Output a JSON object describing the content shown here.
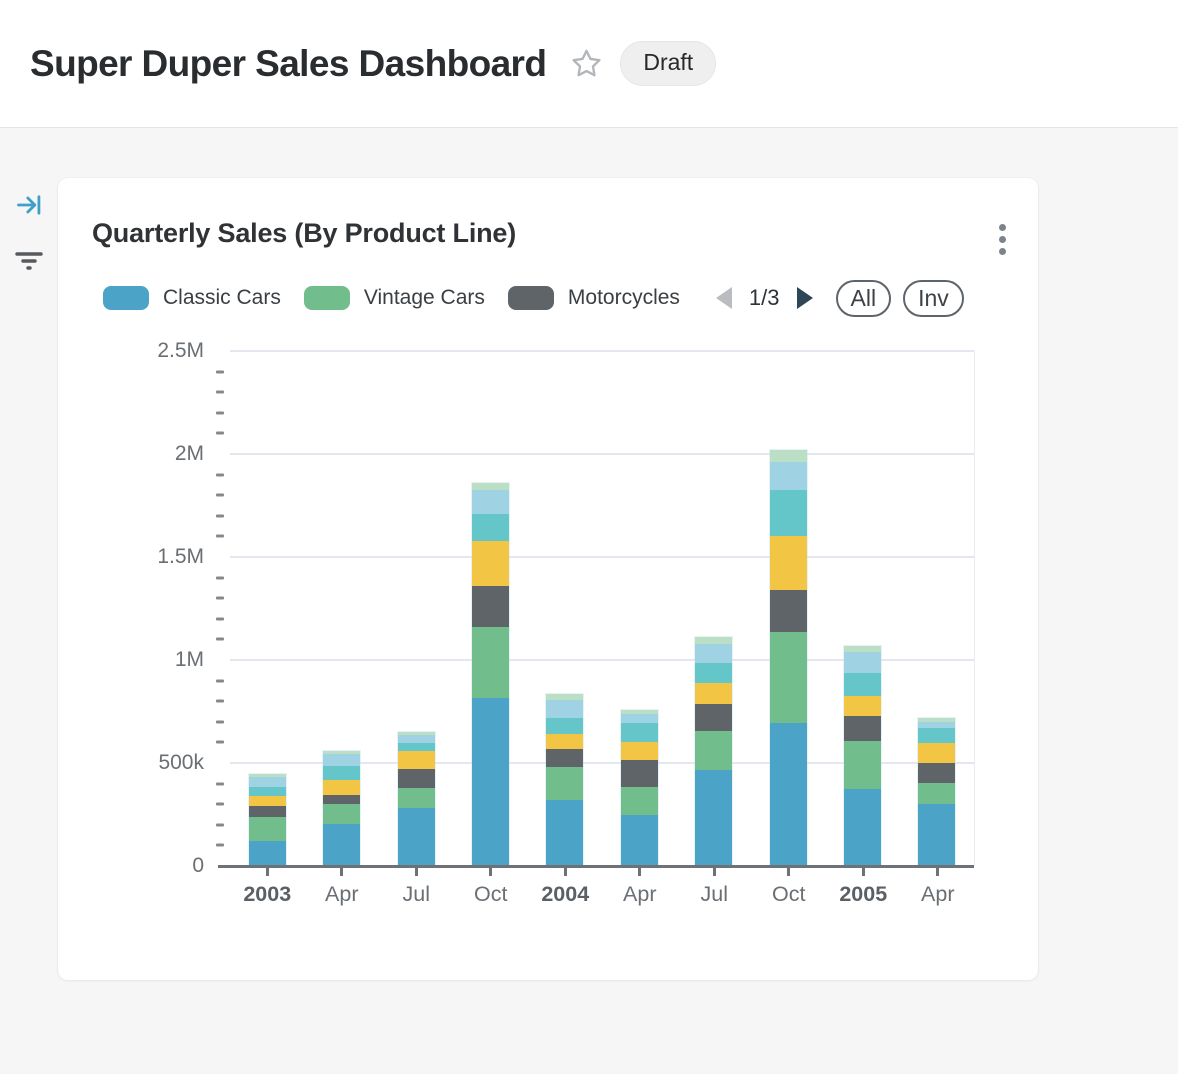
{
  "header": {
    "title": "Super Duper Sales Dashboard",
    "status_badge": "Draft",
    "icons": [
      "star-icon"
    ]
  },
  "sidebar": {
    "icons": [
      "collapse-panel-icon",
      "filter-icon"
    ],
    "accent_color": "#3f9fc8"
  },
  "card": {
    "title": "Quarterly Sales (By Product Line)",
    "menu_icon": "kebab-menu-icon",
    "legend": {
      "items": [
        {
          "label": "Classic Cars",
          "color": "#4BA3C7"
        },
        {
          "label": "Vintage Cars",
          "color": "#72BD8C"
        },
        {
          "label": "Motorcycles",
          "color": "#5F6468"
        }
      ],
      "pagination": {
        "display": "1/3",
        "prev_enabled": false,
        "next_enabled": true,
        "prev_color": "#b9bdc1",
        "next_color": "#2e4656"
      },
      "buttons": [
        {
          "label": "All"
        },
        {
          "label": "Inv"
        }
      ]
    }
  },
  "chart_data": {
    "type": "bar",
    "stacked": true,
    "title": "Quarterly Sales (By Product Line)",
    "xlabel": "",
    "ylabel": "",
    "ylim": [
      0,
      2500000
    ],
    "grid": true,
    "legend_position": "top",
    "legend_pages": "1/3",
    "y_ticks": [
      {
        "value": 0,
        "label": "0"
      },
      {
        "value": 500000,
        "label": "500k"
      },
      {
        "value": 1000000,
        "label": "1M"
      },
      {
        "value": 1500000,
        "label": "1.5M"
      },
      {
        "value": 2000000,
        "label": "2M"
      },
      {
        "value": 2500000,
        "label": "2.5M"
      }
    ],
    "minor_tick_step": 100000,
    "categories": [
      "2003",
      "Apr",
      "Jul",
      "Oct",
      "2004",
      "Apr",
      "Jul",
      "Oct",
      "2005",
      "Apr"
    ],
    "bold_category_indexes": [
      0,
      4,
      8
    ],
    "series": [
      {
        "label": "Classic Cars",
        "color": "#4BA3C7",
        "values": [
          120000,
          205000,
          280000,
          815000,
          320000,
          250000,
          465000,
          695000,
          375000,
          300000
        ]
      },
      {
        "label": "Vintage Cars",
        "color": "#72BD8C",
        "values": [
          120000,
          95000,
          100000,
          345000,
          160000,
          135000,
          190000,
          440000,
          230000,
          105000
        ]
      },
      {
        "label": "Motorcycles",
        "color": "#5F6468",
        "values": [
          50000,
          45000,
          90000,
          200000,
          90000,
          130000,
          130000,
          205000,
          125000,
          95000
        ]
      },
      {
        "label": "",
        "color": "#F2C644",
        "values": [
          50000,
          75000,
          90000,
          220000,
          70000,
          85000,
          105000,
          260000,
          95000,
          95000
        ]
      },
      {
        "label": "",
        "color": "#65C6CA",
        "values": [
          45000,
          65000,
          35000,
          130000,
          80000,
          95000,
          95000,
          225000,
          110000,
          75000
        ]
      },
      {
        "label": "",
        "color": "#9FD2E2",
        "values": [
          45000,
          60000,
          40000,
          115000,
          85000,
          45000,
          95000,
          135000,
          105000,
          30000
        ]
      },
      {
        "label": "",
        "color": "#BADFC4",
        "values": [
          15000,
          15000,
          15000,
          35000,
          30000,
          20000,
          30000,
          60000,
          30000,
          20000
        ]
      }
    ]
  }
}
